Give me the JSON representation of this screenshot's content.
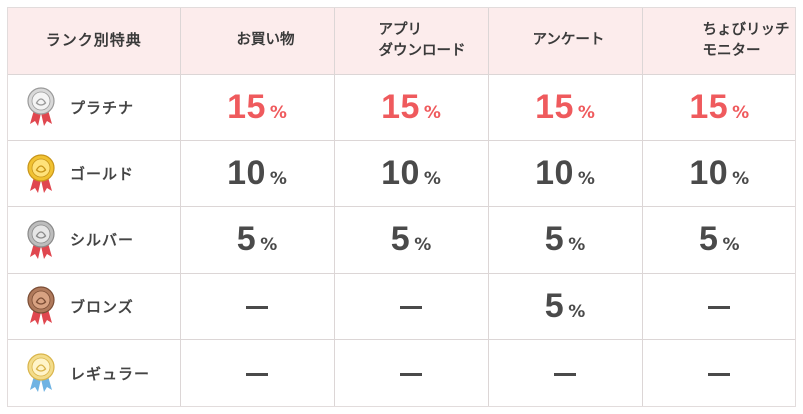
{
  "colors": {
    "header_bg": "#fcecec",
    "border": "#dcd6d6",
    "highlight_value": "#ef5a5d",
    "value_text": "#4a4a4a"
  },
  "table": {
    "headers": {
      "rank": "ランク別特典",
      "shopping": "お買い物",
      "app_line1": "アプリ",
      "app_line2": "ダウンロード",
      "survey": "アンケート",
      "monitor_line1": "ちょびリッチ",
      "monitor_line2": "モニター"
    },
    "percent_sign": "%",
    "dash_symbol": "—",
    "rows": [
      {
        "rank": "プラチナ",
        "medal_icon": "platinum-medal-icon",
        "values": [
          "15",
          "15",
          "15",
          "15"
        ]
      },
      {
        "rank": "ゴールド",
        "medal_icon": "gold-medal-icon",
        "values": [
          "10",
          "10",
          "10",
          "10"
        ]
      },
      {
        "rank": "シルバー",
        "medal_icon": "silver-medal-icon",
        "values": [
          "5",
          "5",
          "5",
          "5"
        ]
      },
      {
        "rank": "ブロンズ",
        "medal_icon": "bronze-medal-icon",
        "values": [
          "—",
          "—",
          "5",
          "—"
        ]
      },
      {
        "rank": "レギュラー",
        "medal_icon": "regular-medal-icon",
        "values": [
          "—",
          "—",
          "—",
          "—"
        ]
      }
    ]
  }
}
